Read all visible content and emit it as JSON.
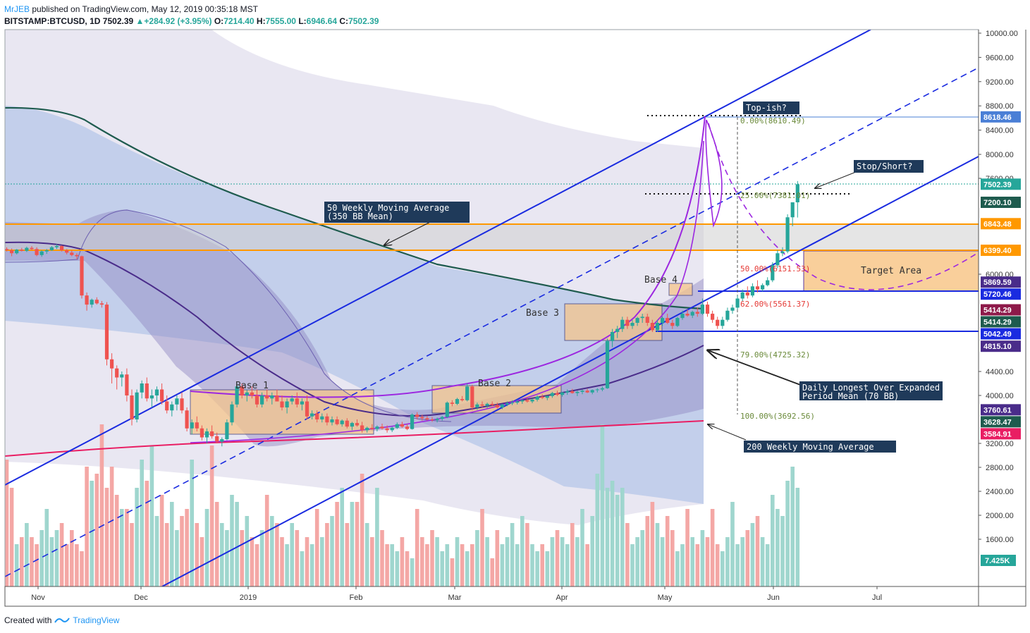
{
  "header": {
    "author": "MrJEB",
    "published": "published on TradingView.com, May 12, 2019 00:35:18 MST",
    "symbol": "BITSTAMP:BTCUSD, 1D",
    "last": "7502.39",
    "change": "+284.92 (+3.95%)",
    "o_label": "O:",
    "o": "7214.40",
    "h_label": "H:",
    "h": "7555.00",
    "l_label": "L:",
    "l": "6946.64",
    "c_label": "C:",
    "c": "7502.39"
  },
  "footer": {
    "created": "Created with",
    "brand": "TradingView"
  },
  "colors": {
    "up": "#26a69a",
    "down": "#ef5350",
    "channel": "#1a2be0",
    "orange": "#ff9800",
    "purple": "#9c27e0",
    "ma50": "#1e5b4e",
    "ma200": "#e91e63",
    "ma70": "#4a2c8a"
  },
  "chart_data": {
    "type": "candlestick",
    "yaxis": {
      "ticks": [
        "10000.00",
        "9600.00",
        "9200.00",
        "8800.00",
        "8400.00",
        "8000.00",
        "7600.00",
        "6000.00",
        "4400.00",
        "4000.00",
        "3200.00",
        "2800.00",
        "2400.00",
        "2000.00",
        "1600.00"
      ],
      "ylim": [
        800,
        10100
      ]
    },
    "xaxis": {
      "ticks": [
        "Nov",
        "Dec",
        "2019",
        "Feb",
        "Mar",
        "Apr",
        "May",
        "Jun",
        "Jul"
      ]
    },
    "price_labels": [
      {
        "value": 8618.46,
        "text": "8618.46",
        "bg": "#4a7fd6"
      },
      {
        "value": 7502.39,
        "text": "7502.39",
        "bg": "#26a69a"
      },
      {
        "value": 7200.1,
        "text": "7200.10",
        "bg": "#1e5b4e"
      },
      {
        "value": 6843.48,
        "text": "6843.48",
        "bg": "#ff9800"
      },
      {
        "value": 6399.4,
        "text": "6399.40",
        "bg": "#ff9800"
      },
      {
        "value": 5869.59,
        "text": "5869.59",
        "bg": "#4a2c8a"
      },
      {
        "value": 5720.46,
        "text": "5720.46",
        "bg": "#1a2be0"
      },
      {
        "value": 5414.29,
        "text": "5414.29",
        "bg": "#8e1a4a"
      },
      {
        "value": 5414.29,
        "text": "5414.29",
        "bg": "#1e5b4e"
      },
      {
        "value": 5042.49,
        "text": "5042.49",
        "bg": "#1a2be0"
      },
      {
        "value": 4815.1,
        "text": "4815.10",
        "bg": "#4a2c8a"
      },
      {
        "value": 3760.61,
        "text": "3760.61",
        "bg": "#4a2c8a"
      },
      {
        "value": 3628.47,
        "text": "3628.47",
        "bg": "#1e5b4e"
      },
      {
        "value": 3584.91,
        "text": "3584.91",
        "bg": "#e91e63"
      }
    ],
    "volume_label": "7.425K",
    "fib_levels": [
      {
        "ratio": "0.00%",
        "value": "(8610.49)",
        "color": "#6a8a3a"
      },
      {
        "ratio": "25.00%",
        "value": "(7381.01)",
        "color": "#6a8a3a"
      },
      {
        "ratio": "50.00%",
        "value": "(6151.53)",
        "color": "#e53935"
      },
      {
        "ratio": "62.00%",
        "value": "(5561.37)",
        "color": "#e53935"
      },
      {
        "ratio": "79.00%",
        "value": "(4725.32)",
        "color": "#6a8a3a"
      },
      {
        "ratio": "100.00%",
        "value": "(3692.56)",
        "color": "#6a8a3a"
      }
    ],
    "annotations": {
      "ma50_a": "50 Weekly Moving Average",
      "ma50_b": "(350 BB Mean)",
      "top": "Top-ish?",
      "stop": "Stop/Short?",
      "daily_a": "Daily Longest Over Expanded",
      "daily_b": "Period Mean (70 BB)",
      "ma200": "200 Weekly Moving Average",
      "target": "Target Area",
      "base1": "Base 1",
      "base2": "Base 2",
      "base3": "Base 3",
      "base4": "Base 4"
    },
    "candles": [
      [
        6420,
        6450,
        6380,
        6400
      ],
      [
        6400,
        6430,
        6300,
        6350
      ],
      [
        6350,
        6420,
        6330,
        6410
      ],
      [
        6410,
        6440,
        6380,
        6390
      ],
      [
        6390,
        6460,
        6370,
        6440
      ],
      [
        6440,
        6470,
        6400,
        6420
      ],
      [
        6420,
        6450,
        6300,
        6320
      ],
      [
        6320,
        6400,
        6290,
        6380
      ],
      [
        6380,
        6420,
        6340,
        6400
      ],
      [
        6400,
        6470,
        6390,
        6450
      ],
      [
        6450,
        6500,
        6420,
        6470
      ],
      [
        6470,
        6480,
        6380,
        6400
      ],
      [
        6400,
        6420,
        6330,
        6360
      ],
      [
        6360,
        6400,
        6300,
        6320
      ],
      [
        6320,
        6350,
        6250,
        6300
      ],
      [
        6300,
        6310,
        5600,
        5650
      ],
      [
        5650,
        5700,
        5400,
        5500
      ],
      [
        5500,
        5600,
        5450,
        5580
      ],
      [
        5580,
        5620,
        5500,
        5520
      ],
      [
        5520,
        5560,
        5450,
        5500
      ],
      [
        5500,
        5540,
        4500,
        4600
      ],
      [
        4600,
        4700,
        4200,
        4450
      ],
      [
        4450,
        4500,
        4100,
        4300
      ],
      [
        4300,
        4400,
        4150,
        4350
      ],
      [
        4350,
        4450,
        3900,
        4000
      ],
      [
        4000,
        4100,
        3500,
        3600
      ],
      [
        3600,
        4100,
        3550,
        4050
      ],
      [
        4050,
        4250,
        3950,
        4200
      ],
      [
        4200,
        4300,
        3900,
        3950
      ],
      [
        3950,
        4100,
        3800,
        4000
      ],
      [
        4000,
        4150,
        3900,
        4100
      ],
      [
        4100,
        4200,
        3850,
        3900
      ],
      [
        3900,
        4000,
        3700,
        3750
      ],
      [
        3750,
        3900,
        3650,
        3850
      ],
      [
        3850,
        4000,
        3750,
        3950
      ],
      [
        3950,
        4050,
        3700,
        3750
      ],
      [
        3750,
        3800,
        3400,
        3450
      ],
      [
        3450,
        3600,
        3350,
        3550
      ],
      [
        3550,
        3650,
        3400,
        3450
      ],
      [
        3450,
        3500,
        3250,
        3300
      ],
      [
        3300,
        3450,
        3200,
        3400
      ],
      [
        3400,
        3500,
        3280,
        3320
      ],
      [
        3320,
        3380,
        3200,
        3230
      ],
      [
        3230,
        3300,
        3150,
        3270
      ],
      [
        3270,
        3600,
        3250,
        3550
      ],
      [
        3550,
        3900,
        3500,
        3850
      ],
      [
        3850,
        4200,
        3800,
        4150
      ],
      [
        4150,
        4200,
        3950,
        4000
      ],
      [
        4000,
        4100,
        3900,
        4050
      ],
      [
        4050,
        4150,
        3950,
        4000
      ],
      [
        4000,
        4100,
        3800,
        3850
      ],
      [
        3850,
        4050,
        3800,
        4000
      ],
      [
        4000,
        4100,
        3900,
        3950
      ],
      [
        3950,
        4050,
        3850,
        4000
      ],
      [
        4000,
        4100,
        3900,
        3900
      ],
      [
        3900,
        4000,
        3750,
        3800
      ],
      [
        3800,
        3950,
        3700,
        3900
      ],
      [
        3900,
        4000,
        3850,
        3950
      ],
      [
        3950,
        4050,
        3800,
        3850
      ],
      [
        3850,
        3950,
        3750,
        3900
      ],
      [
        3900,
        4000,
        3600,
        3650
      ],
      [
        3650,
        3750,
        3600,
        3700
      ],
      [
        3700,
        3750,
        3550,
        3600
      ],
      [
        3600,
        3700,
        3550,
        3650
      ],
      [
        3650,
        3700,
        3500,
        3550
      ],
      [
        3550,
        3650,
        3500,
        3600
      ],
      [
        3600,
        3650,
        3500,
        3520
      ],
      [
        3520,
        3600,
        3480,
        3580
      ],
      [
        3580,
        3620,
        3450,
        3480
      ],
      [
        3480,
        3560,
        3420,
        3540
      ],
      [
        3540,
        3600,
        3480,
        3500
      ],
      [
        3500,
        3560,
        3380,
        3420
      ],
      [
        3420,
        3480,
        3380,
        3460
      ],
      [
        3460,
        3520,
        3420,
        3440
      ],
      [
        3440,
        3500,
        3400,
        3480
      ],
      [
        3480,
        3530,
        3430,
        3450
      ],
      [
        3450,
        3500,
        3380,
        3420
      ],
      [
        3420,
        3480,
        3390,
        3460
      ],
      [
        3460,
        3550,
        3440,
        3520
      ],
      [
        3520,
        3560,
        3460,
        3480
      ],
      [
        3480,
        3520,
        3420,
        3440
      ],
      [
        3440,
        3700,
        3430,
        3680
      ],
      [
        3680,
        3720,
        3600,
        3640
      ],
      [
        3640,
        3680,
        3580,
        3620
      ],
      [
        3620,
        3660,
        3580,
        3600
      ],
      [
        3600,
        3640,
        3560,
        3590
      ],
      [
        3590,
        3630,
        3550,
        3610
      ],
      [
        3610,
        3660,
        3580,
        3640
      ],
      [
        3640,
        3900,
        3620,
        3880
      ],
      [
        3880,
        3920,
        3820,
        3860
      ],
      [
        3860,
        3960,
        3840,
        3940
      ],
      [
        3940,
        3990,
        3900,
        3920
      ],
      [
        3920,
        4200,
        3900,
        4150
      ],
      [
        4150,
        4180,
        3750,
        3800
      ],
      [
        3800,
        3880,
        3760,
        3850
      ],
      [
        3850,
        3900,
        3800,
        3830
      ],
      [
        3830,
        3880,
        3790,
        3860
      ],
      [
        3860,
        3900,
        3820,
        3840
      ],
      [
        3840,
        3880,
        3780,
        3800
      ],
      [
        3800,
        3860,
        3770,
        3850
      ],
      [
        3850,
        3900,
        3820,
        3870
      ],
      [
        3870,
        3920,
        3840,
        3880
      ],
      [
        3880,
        3930,
        3850,
        3900
      ],
      [
        3900,
        3950,
        3860,
        3920
      ],
      [
        3920,
        3960,
        3880,
        3900
      ],
      [
        3900,
        3950,
        3870,
        3930
      ],
      [
        3930,
        4000,
        3900,
        3980
      ],
      [
        3980,
        4020,
        3940,
        3960
      ],
      [
        3960,
        4000,
        3920,
        3990
      ],
      [
        3990,
        4060,
        3960,
        4040
      ],
      [
        4040,
        4080,
        3990,
        4010
      ],
      [
        4010,
        4060,
        3980,
        4050
      ],
      [
        4050,
        4100,
        4010,
        4070
      ],
      [
        4070,
        4110,
        4030,
        4040
      ],
      [
        4040,
        4080,
        3990,
        4060
      ],
      [
        4060,
        4100,
        4020,
        4080
      ],
      [
        4080,
        4110,
        4040,
        4050
      ],
      [
        4050,
        4100,
        4020,
        4090
      ],
      [
        4090,
        4120,
        4050,
        4100
      ],
      [
        4100,
        4150,
        4070,
        4120
      ],
      [
        4120,
        4940,
        4110,
        4900
      ],
      [
        4900,
        5100,
        4800,
        5050
      ],
      [
        5050,
        5150,
        4950,
        5100
      ],
      [
        5100,
        5300,
        5050,
        5250
      ],
      [
        5250,
        5300,
        5100,
        5150
      ],
      [
        5150,
        5250,
        5100,
        5200
      ],
      [
        5200,
        5300,
        5150,
        5280
      ],
      [
        5280,
        5350,
        5200,
        5300
      ],
      [
        5300,
        5350,
        5150,
        5200
      ],
      [
        5200,
        5250,
        5050,
        5080
      ],
      [
        5080,
        5250,
        5050,
        5200
      ],
      [
        5200,
        5300,
        5150,
        5280
      ],
      [
        5280,
        5350,
        5180,
        5200
      ],
      [
        5200,
        5250,
        5100,
        5150
      ],
      [
        5150,
        5300,
        5130,
        5280
      ],
      [
        5280,
        5400,
        5250,
        5350
      ],
      [
        5350,
        5420,
        5300,
        5320
      ],
      [
        5320,
        5400,
        5280,
        5380
      ],
      [
        5380,
        5450,
        5300,
        5350
      ],
      [
        5350,
        5600,
        5330,
        5500
      ],
      [
        5500,
        5550,
        5300,
        5350
      ],
      [
        5350,
        5400,
        5200,
        5250
      ],
      [
        5250,
        5300,
        5100,
        5150
      ],
      [
        5150,
        5300,
        5100,
        5250
      ],
      [
        5250,
        5450,
        5220,
        5400
      ],
      [
        5400,
        5500,
        5350,
        5450
      ],
      [
        5450,
        5650,
        5420,
        5600
      ],
      [
        5600,
        5750,
        5550,
        5700
      ],
      [
        5700,
        5800,
        5600,
        5650
      ],
      [
        5650,
        5850,
        5620,
        5800
      ],
      [
        5800,
        5900,
        5700,
        5750
      ],
      [
        5750,
        5850,
        5720,
        5820
      ],
      [
        5820,
        5950,
        5800,
        5900
      ],
      [
        5900,
        6200,
        5870,
        6150
      ],
      [
        6150,
        6400,
        6100,
        6350
      ],
      [
        6350,
        6450,
        6300,
        6380
      ],
      [
        6380,
        7000,
        6350,
        6950
      ],
      [
        6950,
        7200,
        6800,
        7200
      ],
      [
        7200,
        7555,
        6946,
        7502
      ]
    ]
  }
}
